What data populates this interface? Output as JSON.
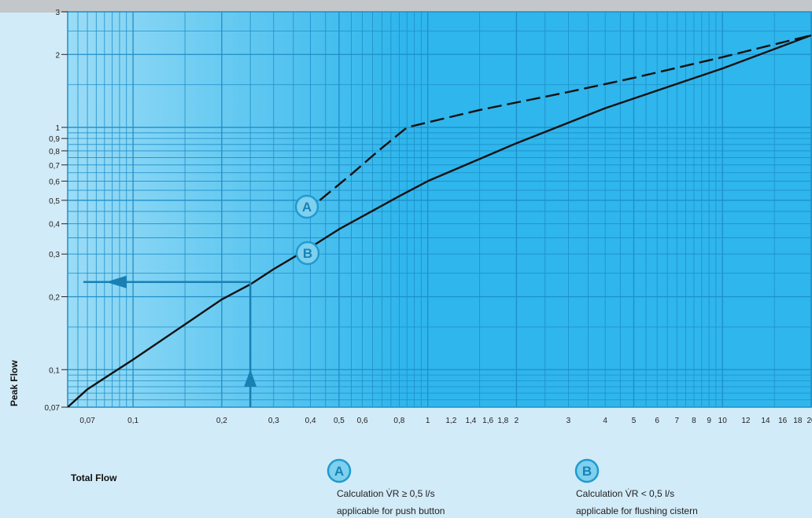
{
  "chart_data": {
    "type": "line",
    "xscale": "log",
    "yscale": "log",
    "xlim": [
      0.06,
      20
    ],
    "ylim": [
      0.07,
      3
    ],
    "ylabel": "Peak Flow",
    "xlabel": "Total Flow",
    "grid": true,
    "x_ticks": [
      "0,07",
      "0,1",
      "0,2",
      "0,3",
      "0,4",
      "0,5",
      "0,6",
      "0,8",
      "1",
      "1,2",
      "1,4",
      "1,6",
      "1,8",
      "2",
      "3",
      "4",
      "5",
      "6",
      "7",
      "8",
      "9",
      "10",
      "12",
      "14",
      "16",
      "18",
      "20"
    ],
    "y_ticks": [
      "0,07",
      "0,1",
      "0,2",
      "0,3",
      "0,4",
      "0,5",
      "0,6",
      "0,7",
      "0,8",
      "0,9",
      "1",
      "2",
      "3"
    ],
    "series": [
      {
        "name": "A",
        "style": "dashed",
        "x": [
          0.43,
          0.55,
          0.68,
          0.85,
          1.5,
          3,
          5,
          10,
          20
        ],
        "y": [
          0.5,
          0.64,
          0.8,
          1.0,
          1.18,
          1.4,
          1.6,
          1.95,
          2.4
        ]
      },
      {
        "name": "B",
        "style": "solid",
        "x": [
          0.06,
          0.07,
          0.1,
          0.2,
          0.25,
          0.3,
          0.4,
          0.5,
          0.8,
          1,
          2,
          4,
          10,
          20
        ],
        "y": [
          0.07,
          0.083,
          0.11,
          0.195,
          0.225,
          0.26,
          0.32,
          0.38,
          0.52,
          0.6,
          0.86,
          1.2,
          1.75,
          2.4
        ]
      }
    ],
    "example": {
      "x": 0.25,
      "y": 0.23
    }
  },
  "labels": {
    "badge_a": "A",
    "badge_b": "B"
  },
  "legend": {
    "a_line1": "Calculation  V̇R ≥ 0,5 l/s",
    "a_line2": "applicable for push button",
    "b_line1": "Calculation  V̇R < 0,5 l/s",
    "b_line2": "applicable for flushing cistern"
  },
  "colors": {
    "plot_bg": "#2fb6ec",
    "plot_bg_left": "#9adcf6",
    "grid": "#1f8ec7",
    "curve": "#111111",
    "arrow": "#1a7fb3"
  }
}
